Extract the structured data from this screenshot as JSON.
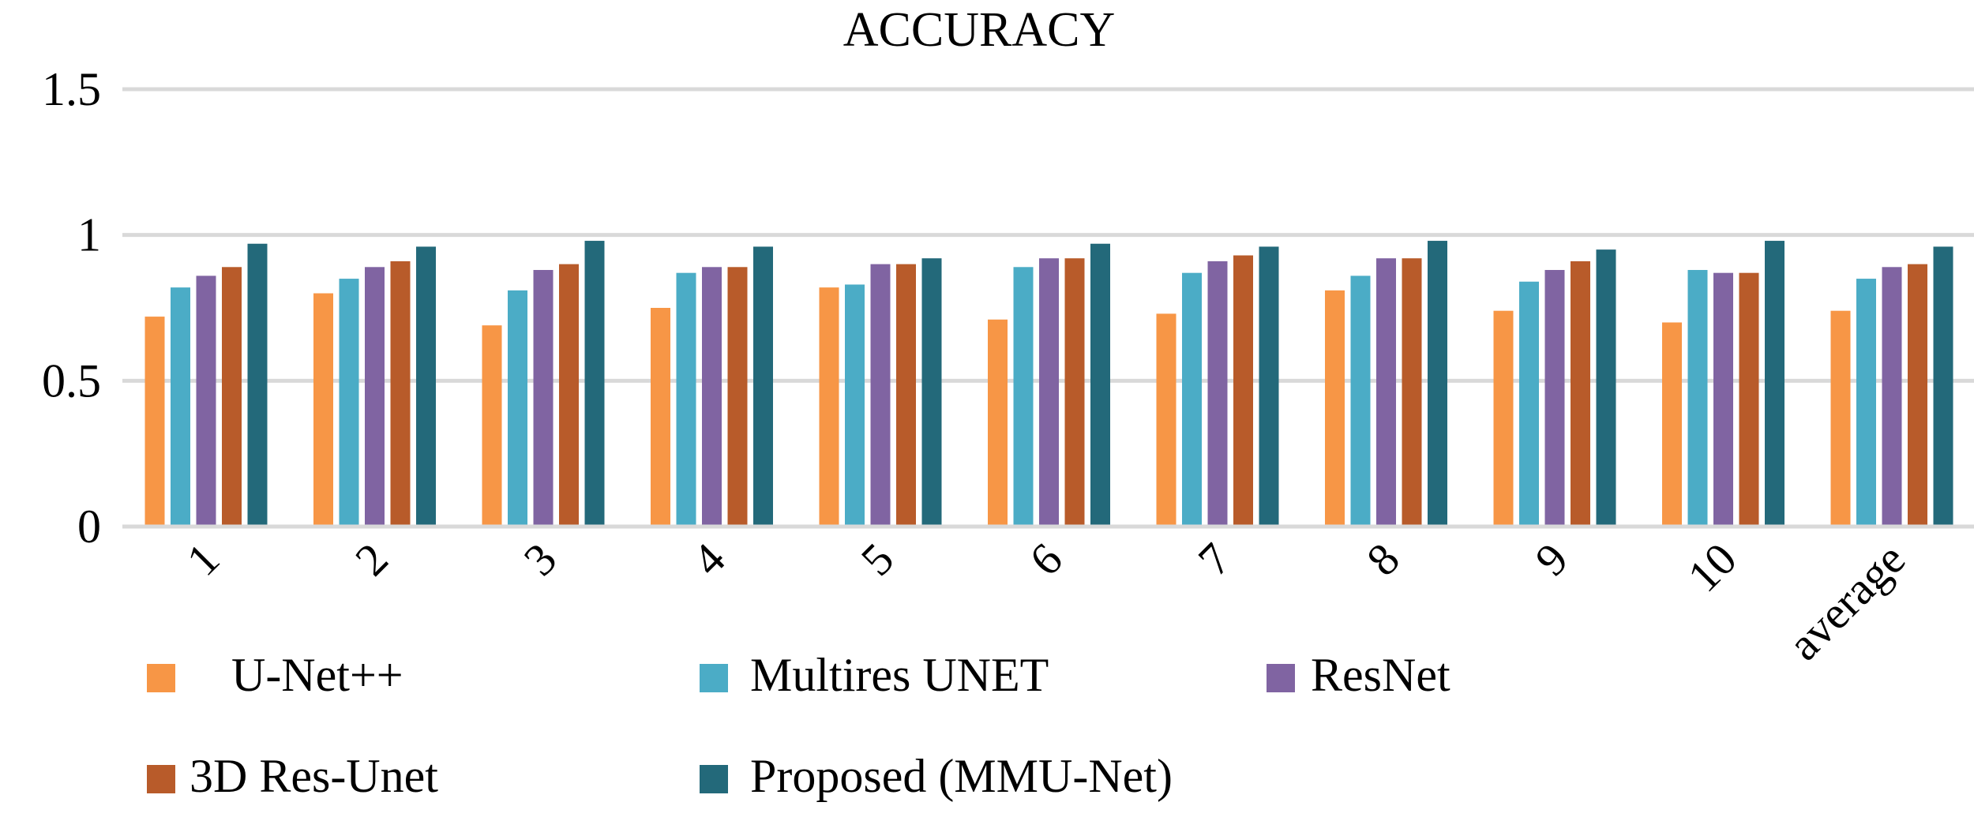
{
  "chart_data": {
    "type": "bar",
    "title": "ACCURACY",
    "xlabel": "",
    "ylabel": "",
    "ylim": [
      0,
      1.5
    ],
    "yticks": [
      "0",
      "0.5",
      "1",
      "1.5"
    ],
    "ytick_values": [
      0,
      0.5,
      1,
      1.5
    ],
    "grid": true,
    "legend_position": "bottom",
    "categories": [
      "1",
      "2",
      "3",
      "4",
      "5",
      "6",
      "7",
      "8",
      "9",
      "10",
      "average"
    ],
    "series": [
      {
        "name": "U-Net++",
        "color": "#F79646",
        "values": [
          0.72,
          0.8,
          0.69,
          0.75,
          0.82,
          0.71,
          0.73,
          0.81,
          0.74,
          0.7,
          0.74
        ]
      },
      {
        "name": "Multires UNET",
        "color": "#4BACC6",
        "values": [
          0.82,
          0.85,
          0.81,
          0.87,
          0.83,
          0.89,
          0.87,
          0.86,
          0.84,
          0.88,
          0.85
        ]
      },
      {
        "name": "ResNet",
        "color": "#8064A2",
        "values": [
          0.86,
          0.89,
          0.88,
          0.89,
          0.9,
          0.92,
          0.91,
          0.92,
          0.88,
          0.87,
          0.89
        ]
      },
      {
        "name": "3D Res-Unet",
        "color": "#B85B2A",
        "values": [
          0.89,
          0.91,
          0.9,
          0.89,
          0.9,
          0.92,
          0.93,
          0.92,
          0.91,
          0.87,
          0.9
        ]
      },
      {
        "name": "Proposed (MMU-Net)",
        "color": "#23697A",
        "values": [
          0.97,
          0.96,
          0.98,
          0.96,
          0.92,
          0.97,
          0.96,
          0.98,
          0.95,
          0.98,
          0.96
        ]
      }
    ]
  }
}
